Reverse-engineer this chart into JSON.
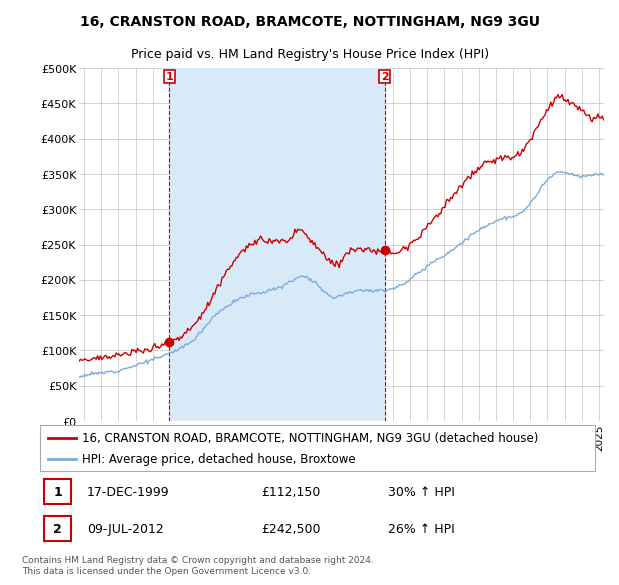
{
  "title": "16, CRANSTON ROAD, BRAMCOTE, NOTTINGHAM, NG9 3GU",
  "subtitle": "Price paid vs. HM Land Registry's House Price Index (HPI)",
  "ylabel_ticks": [
    "£0",
    "£50K",
    "£100K",
    "£150K",
    "£200K",
    "£250K",
    "£300K",
    "£350K",
    "£400K",
    "£450K",
    "£500K"
  ],
  "ytick_values": [
    0,
    50000,
    100000,
    150000,
    200000,
    250000,
    300000,
    350000,
    400000,
    450000,
    500000
  ],
  "ylim": [
    0,
    500000
  ],
  "xlim_start": 1994.7,
  "xlim_end": 2025.3,
  "red_line_color": "#cc0000",
  "blue_line_color": "#7aacdc",
  "shade_color": "#d8eaf7",
  "background_color": "#ffffff",
  "plot_bg_color": "#ffffff",
  "grid_color": "#cccccc",
  "legend_label_red": "16, CRANSTON ROAD, BRAMCOTE, NOTTINGHAM, NG9 3GU (detached house)",
  "legend_label_blue": "HPI: Average price, detached house, Broxtowe",
  "sale1_date": "17-DEC-1999",
  "sale1_price": "£112,150",
  "sale1_hpi": "30% ↑ HPI",
  "sale1_x": 1999.96,
  "sale1_y": 112150,
  "sale2_date": "09-JUL-2012",
  "sale2_price": "£242,500",
  "sale2_hpi": "26% ↑ HPI",
  "sale2_x": 2012.52,
  "sale2_y": 242500,
  "footer": "Contains HM Land Registry data © Crown copyright and database right 2024.\nThis data is licensed under the Open Government Licence v3.0.",
  "title_fontsize": 10,
  "subtitle_fontsize": 9,
  "tick_fontsize": 8,
  "legend_fontsize": 8.5
}
